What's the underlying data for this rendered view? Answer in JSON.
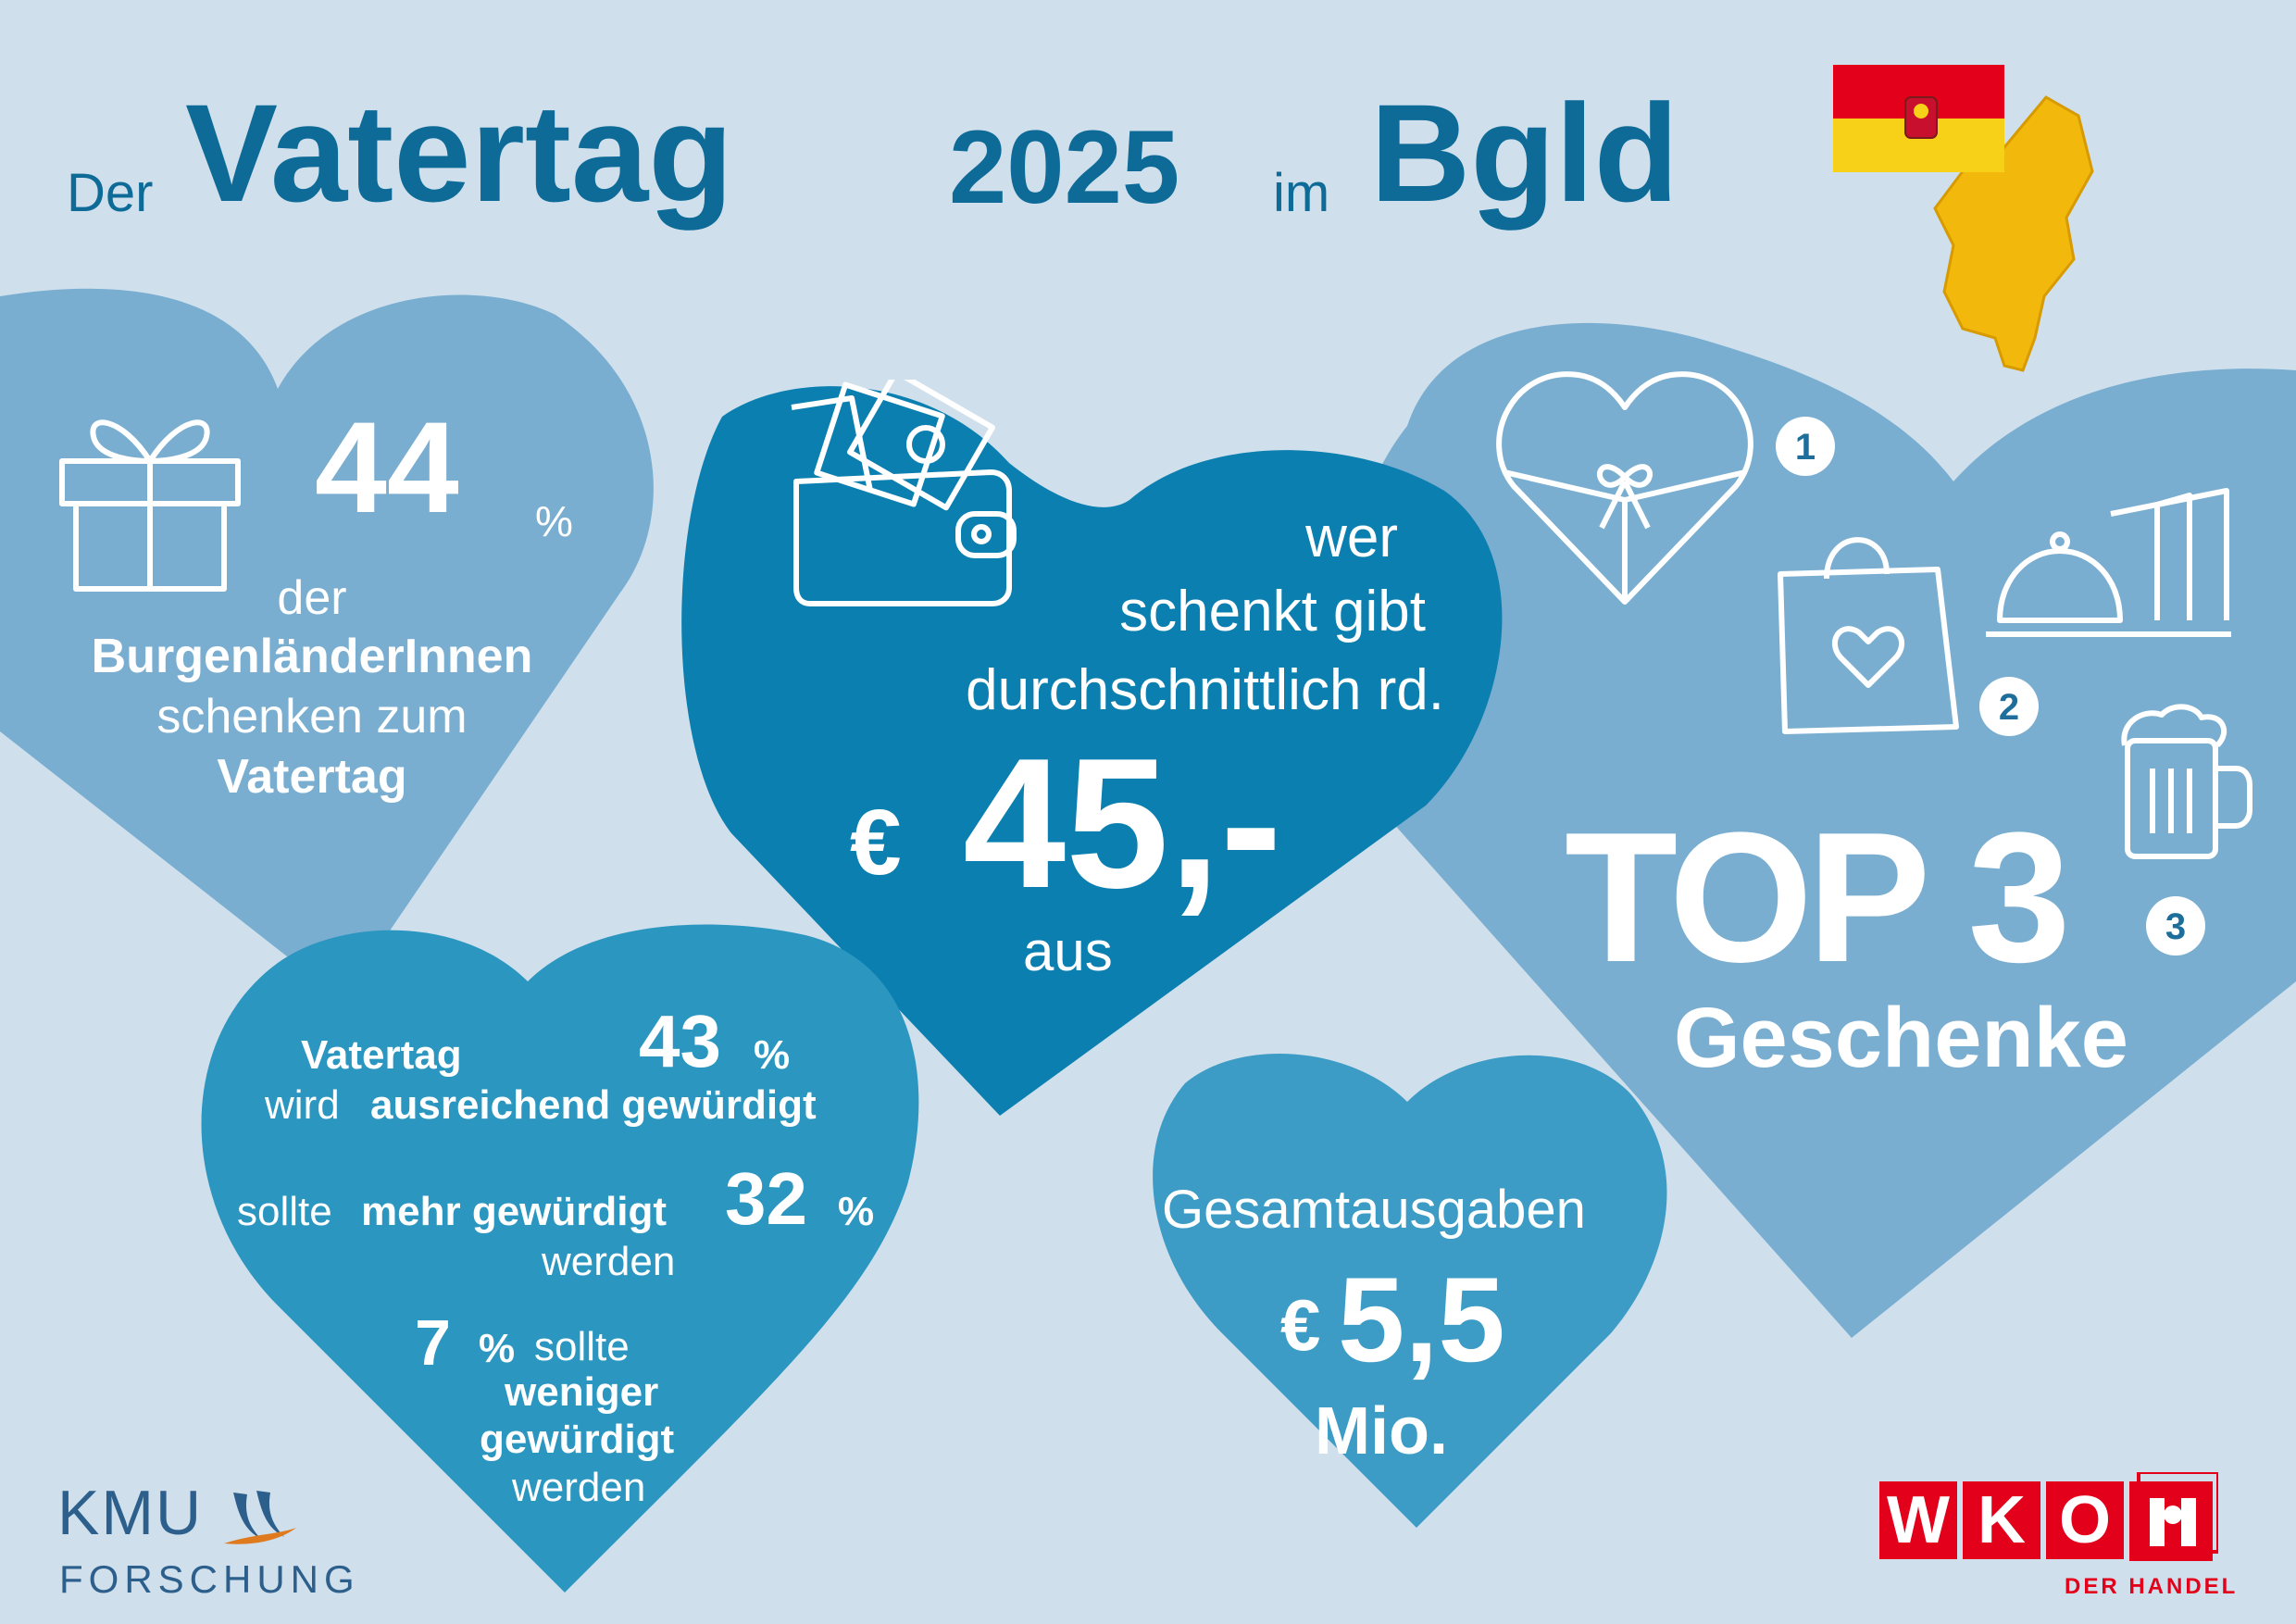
{
  "title": {
    "prefix": "Der",
    "main": "Vatertag",
    "year": "2025",
    "in": "im",
    "region": "Bgld"
  },
  "colors": {
    "background": "#cfe0ec",
    "heart_light": "#7aaed1",
    "heart_dark": "#0b7fb0",
    "heart_mid": "#2b96c0",
    "heart_small": "#3d9cc6",
    "title": "#0e6b98",
    "wko_red": "#e2001a"
  },
  "gift_stat": {
    "icon": "gift-icon",
    "value": "44",
    "unit": "%",
    "line1": "der",
    "line2": "BurgenländerInnen",
    "line3": "schenken zum",
    "line4": "Vatertag"
  },
  "spend_stat": {
    "icon": "wallet-icon",
    "line1": "wer",
    "line2": "schenkt gibt",
    "line3": "durchschnittlich rd.",
    "currency": "€",
    "value": "45,-",
    "suffix": "aus"
  },
  "top3": {
    "title": "TOP 3",
    "subtitle": "Geschenke",
    "items": [
      {
        "rank": "1",
        "icon": "heart-gift-box-icon"
      },
      {
        "rank": "2",
        "icon": "shopping-bag-icon"
      },
      {
        "rank": "2",
        "icon": "dining-voucher-icon"
      },
      {
        "rank": "3",
        "icon": "beer-mug-icon"
      }
    ]
  },
  "appreciation": {
    "row1_label_a": "Vatertag",
    "row1_value": "43",
    "row1_unit": "%",
    "row1_label_b_plain": "wird",
    "row1_label_b_bold": "ausreichend gewürdigt",
    "row2_plain": "sollte",
    "row2_bold": "mehr gewürdigt",
    "row2_value": "32",
    "row2_unit": "%",
    "row2_line2": "werden",
    "row3_value": "7",
    "row3_unit": "%",
    "row3_line1": "sollte",
    "row3_line2": "weniger",
    "row3_line3": "gewürdigt",
    "row3_line4": "werden"
  },
  "total": {
    "label": "Gesamtausgaben",
    "currency": "€",
    "value": "5,5",
    "unit": "Mio."
  },
  "logos": {
    "kmu_line1": "KMU",
    "kmu_line2": "FORSCHUNG",
    "wko_letters": [
      "W",
      "K",
      "O"
    ],
    "wko_sub": "DER HANDEL",
    "flag_icon": "burgenland-flag-map-icon"
  }
}
